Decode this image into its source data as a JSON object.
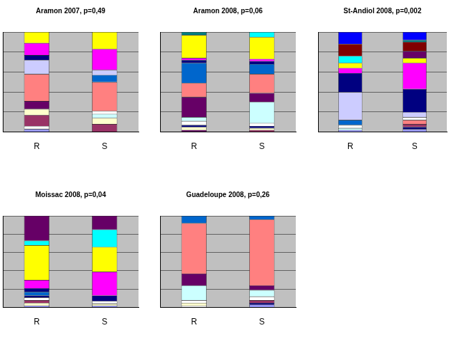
{
  "chart_data": [
    {
      "type": "bar",
      "title": "Aramon 2007, p=0,49",
      "categories": [
        "R",
        "S"
      ],
      "stacked": true,
      "grid": true,
      "tick_labels": "x",
      "ylim": [
        0,
        100
      ],
      "yticks": [
        0,
        20,
        40,
        60,
        80,
        100
      ],
      "series": [
        {
          "color": "#9999ff",
          "values": [
            3,
            0
          ]
        },
        {
          "color": "#ffffff",
          "values": [
            3,
            0
          ]
        },
        {
          "color": "#993366",
          "values": [
            11,
            8
          ]
        },
        {
          "color": "#ffffcc",
          "values": [
            6,
            6
          ]
        },
        {
          "color": "#ccffff",
          "values": [
            0,
            4
          ]
        },
        {
          "color": "#ffffff",
          "values": [
            0,
            3
          ]
        },
        {
          "color": "#660066",
          "values": [
            8,
            0
          ]
        },
        {
          "color": "#ff8080",
          "values": [
            27,
            29
          ]
        },
        {
          "color": "#0066cc",
          "values": [
            0,
            7
          ]
        },
        {
          "color": "#ccccff",
          "values": [
            14,
            5
          ]
        },
        {
          "color": "#000080",
          "values": [
            5,
            0
          ]
        },
        {
          "color": "#ff00ff",
          "values": [
            12,
            21
          ]
        },
        {
          "color": "#ffff00",
          "values": [
            11,
            17
          ]
        }
      ]
    },
    {
      "type": "bar",
      "title": "Aramon 2008, p=0,06",
      "categories": [
        "R",
        "S"
      ],
      "stacked": true,
      "grid": true,
      "tick_labels": "x",
      "ylim": [
        0,
        100
      ],
      "yticks": [
        0,
        20,
        40,
        60,
        80,
        100
      ],
      "series": [
        {
          "color": "#993366",
          "values": [
            0,
            2
          ]
        },
        {
          "color": "#660066",
          "values": [
            2,
            0
          ]
        },
        {
          "color": "#ffffcc",
          "values": [
            3,
            2
          ]
        },
        {
          "color": "#000080",
          "values": [
            2,
            2
          ]
        },
        {
          "color": "#ffffff",
          "values": [
            4,
            3
          ]
        },
        {
          "color": "#ccffff",
          "values": [
            4,
            21
          ]
        },
        {
          "color": "#660066",
          "values": [
            20,
            9
          ]
        },
        {
          "color": "#ff8080",
          "values": [
            14,
            19
          ]
        },
        {
          "color": "#0066cc",
          "values": [
            20,
            10
          ]
        },
        {
          "color": "#000080",
          "values": [
            3,
            3
          ]
        },
        {
          "color": "#ff00ff",
          "values": [
            2,
            2
          ]
        },
        {
          "color": "#ffff00",
          "values": [
            23,
            22
          ]
        },
        {
          "color": "#008080",
          "values": [
            3,
            0
          ]
        },
        {
          "color": "#00ffff",
          "values": [
            0,
            5
          ]
        }
      ]
    },
    {
      "type": "bar",
      "title": "St-Andiol 2008, p=0,002",
      "categories": [
        "R",
        "S"
      ],
      "stacked": true,
      "grid": true,
      "tick_labels": "x",
      "ylim": [
        0,
        100
      ],
      "yticks": [
        0,
        20,
        40,
        60,
        80,
        100
      ],
      "series": [
        {
          "color": "#9999ff",
          "values": [
            2,
            3
          ]
        },
        {
          "color": "#000080",
          "values": [
            0,
            2
          ]
        },
        {
          "color": "#993366",
          "values": [
            0,
            3
          ]
        },
        {
          "color": "#ccffff",
          "values": [
            2,
            0
          ]
        },
        {
          "color": "#ff8080",
          "values": [
            0,
            4
          ]
        },
        {
          "color": "#ffffff",
          "values": [
            3,
            3
          ]
        },
        {
          "color": "#0066cc",
          "values": [
            5,
            0
          ]
        },
        {
          "color": "#ccccff",
          "values": [
            28,
            5
          ]
        },
        {
          "color": "#000080",
          "values": [
            19,
            23
          ]
        },
        {
          "color": "#ff00ff",
          "values": [
            5,
            26
          ]
        },
        {
          "color": "#ffff00",
          "values": [
            5,
            5
          ]
        },
        {
          "color": "#660066",
          "values": [
            0,
            7
          ]
        },
        {
          "color": "#00ffff",
          "values": [
            7,
            0
          ]
        },
        {
          "color": "#800000",
          "values": [
            12,
            9
          ]
        },
        {
          "color": "#008080",
          "values": [
            0,
            2
          ]
        },
        {
          "color": "#0000ff",
          "values": [
            12,
            8
          ]
        }
      ]
    },
    {
      "type": "bar",
      "title": "Moissac 2008, p=0,04",
      "categories": [
        "R",
        "S"
      ],
      "stacked": true,
      "grid": true,
      "tick_labels": "x",
      "ylim": [
        0,
        100
      ],
      "yticks": [
        0,
        20,
        40,
        60,
        80,
        100
      ],
      "series": [
        {
          "color": "#9999ff",
          "values": [
            2,
            2
          ]
        },
        {
          "color": "#ffffcc",
          "values": [
            3,
            2
          ]
        },
        {
          "color": "#993366",
          "values": [
            3,
            0
          ]
        },
        {
          "color": "#ffffff",
          "values": [
            3,
            3
          ]
        },
        {
          "color": "#000080",
          "values": [
            2,
            0
          ]
        },
        {
          "color": "#0066cc",
          "values": [
            4,
            0
          ]
        },
        {
          "color": "#000080",
          "values": [
            4,
            6
          ]
        },
        {
          "color": "#ff00ff",
          "values": [
            9,
            26
          ]
        },
        {
          "color": "#ffff00",
          "values": [
            38,
            27
          ]
        },
        {
          "color": "#00ffff",
          "values": [
            5,
            19
          ]
        },
        {
          "color": "#660066",
          "values": [
            27,
            15
          ]
        }
      ]
    },
    {
      "type": "bar",
      "title": "Guadeloupe 2008, p=0,26",
      "categories": [
        "R",
        "S"
      ],
      "stacked": true,
      "grid": true,
      "tick_labels": "x",
      "ylim": [
        0,
        100
      ],
      "yticks": [
        0,
        20,
        40,
        60,
        80,
        100
      ],
      "series": [
        {
          "color": "#9999ff",
          "values": [
            0,
            3
          ]
        },
        {
          "color": "#000080",
          "values": [
            0,
            2
          ]
        },
        {
          "color": "#ffffff",
          "values": [
            2,
            0
          ]
        },
        {
          "color": "#993366",
          "values": [
            0,
            3
          ]
        },
        {
          "color": "#ffffcc",
          "values": [
            3,
            0
          ]
        },
        {
          "color": "#ffffff",
          "values": [
            3,
            4
          ]
        },
        {
          "color": "#ccffff",
          "values": [
            16,
            7
          ]
        },
        {
          "color": "#660066",
          "values": [
            13,
            5
          ]
        },
        {
          "color": "#ff8080",
          "values": [
            55,
            72
          ]
        },
        {
          "color": "#0066cc",
          "values": [
            8,
            4
          ]
        }
      ]
    }
  ]
}
